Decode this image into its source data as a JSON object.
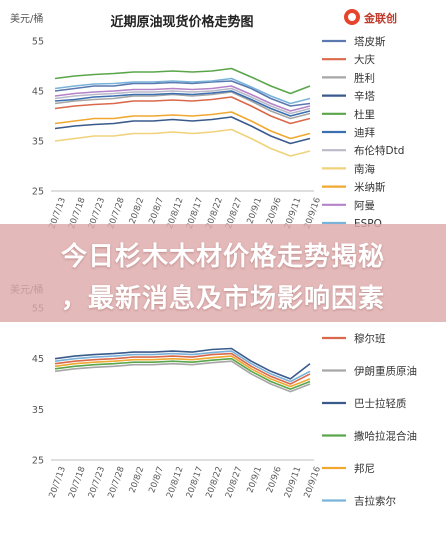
{
  "overlay": {
    "line1": "今日杉木木材价格走势揭秘",
    "line2": "，最新消息及市场影响因素"
  },
  "logo": {
    "text": "金联创",
    "color": "#e8432d"
  },
  "chart_data": [
    {
      "type": "line",
      "title": "近期原油现货价格走势图",
      "ylabel": "美元/桶",
      "ylim": [
        25,
        55
      ],
      "yticks": [
        25,
        35,
        45,
        55
      ],
      "grid": false,
      "legend_position": "right",
      "categories": [
        "20/7/13",
        "20/7/18",
        "20/7/23",
        "20/7/28",
        "20/8/2",
        "20/8/7",
        "20/8/12",
        "20/8/17",
        "20/8/22",
        "20/8/27",
        "20/9/1",
        "20/9/6",
        "20/9/11",
        "20/9/16"
      ],
      "series": [
        {
          "name": "塔皮斯",
          "color": "#5b78b0",
          "values": [
            45.0,
            45.5,
            46.0,
            46.0,
            46.5,
            46.5,
            46.7,
            46.5,
            46.8,
            47.0,
            45.5,
            43.5,
            42.0,
            42.5
          ]
        },
        {
          "name": "大庆",
          "color": "#d9694a",
          "values": [
            41.5,
            42.0,
            42.3,
            42.5,
            43.0,
            43.0,
            43.2,
            43.0,
            43.3,
            43.8,
            42.0,
            40.0,
            38.5,
            39.5
          ]
        },
        {
          "name": "胜利",
          "color": "#a6a6a6",
          "values": [
            42.5,
            43.0,
            43.3,
            43.5,
            44.0,
            44.0,
            44.3,
            44.0,
            44.3,
            44.8,
            43.0,
            41.0,
            39.5,
            40.5
          ]
        },
        {
          "name": "辛塔",
          "color": "#3a5a8c",
          "values": [
            37.5,
            38.0,
            38.3,
            38.5,
            39.0,
            39.0,
            39.3,
            39.0,
            39.3,
            39.8,
            38.0,
            36.0,
            34.5,
            35.5
          ]
        },
        {
          "name": "杜里",
          "color": "#5aa64a",
          "values": [
            47.5,
            48.0,
            48.3,
            48.5,
            48.8,
            48.8,
            49.0,
            48.8,
            49.0,
            49.5,
            47.8,
            46.0,
            44.5,
            46.0
          ]
        },
        {
          "name": "迪拜",
          "color": "#3b6fb0",
          "values": [
            43.0,
            43.3,
            43.8,
            44.0,
            44.3,
            44.3,
            44.5,
            44.3,
            44.6,
            45.0,
            43.3,
            41.5,
            40.0,
            41.0
          ]
        },
        {
          "name": "布伦特Dtd",
          "color": "#b9b9c9",
          "values": [
            43.5,
            44.0,
            44.3,
            44.5,
            44.8,
            44.8,
            45.0,
            44.8,
            45.0,
            45.5,
            43.8,
            42.0,
            40.5,
            41.5
          ]
        },
        {
          "name": "南海",
          "color": "#f0d27a",
          "values": [
            35.0,
            35.5,
            36.0,
            36.0,
            36.5,
            36.5,
            36.8,
            36.5,
            36.8,
            37.3,
            35.5,
            33.5,
            32.0,
            33.0
          ]
        },
        {
          "name": "米纳斯",
          "color": "#f0a830",
          "values": [
            38.5,
            39.0,
            39.5,
            39.5,
            40.0,
            40.0,
            40.2,
            40.0,
            40.3,
            40.8,
            39.0,
            37.0,
            35.5,
            36.5
          ]
        },
        {
          "name": "阿曼",
          "color": "#b583c7",
          "values": [
            44.0,
            44.5,
            44.8,
            45.0,
            45.3,
            45.3,
            45.5,
            45.3,
            45.5,
            46.0,
            44.3,
            42.5,
            41.0,
            42.0
          ]
        },
        {
          "name": "ESPO",
          "color": "#7ab3d9",
          "values": [
            45.5,
            46.0,
            46.4,
            46.5,
            46.8,
            46.8,
            47.0,
            46.8,
            47.0,
            47.5,
            45.8,
            44.0,
            42.5,
            43.5
          ]
        }
      ]
    },
    {
      "type": "line",
      "ylabel": "美元/桶",
      "ylim": [
        25,
        55
      ],
      "yticks": [
        25,
        35,
        45,
        55
      ],
      "grid": false,
      "legend_position": "right",
      "categories": [
        "20/7/13",
        "20/7/18",
        "20/7/23",
        "20/7/28",
        "20/8/2",
        "20/8/7",
        "20/8/12",
        "20/8/17",
        "20/8/22",
        "20/8/27",
        "20/9/1",
        "20/9/6",
        "20/9/11",
        "20/9/16"
      ],
      "series": [
        {
          "name": "穆尔班",
          "color": "#d9694a",
          "values": [
            44.0,
            44.5,
            44.8,
            45.0,
            45.3,
            45.3,
            45.5,
            45.3,
            45.8,
            46.0,
            43.5,
            41.5,
            40.0,
            42.0
          ]
        },
        {
          "name": "伊朗重质原油",
          "color": "#a6a6a6",
          "values": [
            42.5,
            43.0,
            43.3,
            43.5,
            43.8,
            43.8,
            44.0,
            43.8,
            44.2,
            44.5,
            42.0,
            40.0,
            38.5,
            40.0
          ]
        },
        {
          "name": "巴士拉轻质",
          "color": "#3a5a8c",
          "values": [
            45.0,
            45.5,
            45.8,
            46.0,
            46.3,
            46.3,
            46.5,
            46.3,
            46.8,
            47.0,
            44.5,
            42.5,
            41.0,
            44.0
          ]
        },
        {
          "name": "撒哈拉混合油",
          "color": "#5aa64a",
          "values": [
            43.0,
            43.5,
            43.8,
            44.0,
            44.3,
            44.3,
            44.5,
            44.3,
            44.7,
            45.0,
            42.5,
            40.5,
            39.0,
            40.5
          ]
        },
        {
          "name": "邦尼",
          "color": "#f0a830",
          "values": [
            43.5,
            44.0,
            44.3,
            44.5,
            44.8,
            44.8,
            45.0,
            44.8,
            45.2,
            45.5,
            43.0,
            41.0,
            39.5,
            41.0
          ]
        },
        {
          "name": "吉拉索尔",
          "color": "#7ab3d9",
          "values": [
            44.5,
            45.0,
            45.3,
            45.5,
            45.8,
            45.8,
            46.0,
            45.8,
            46.2,
            46.5,
            44.0,
            42.0,
            40.5,
            42.5
          ]
        }
      ]
    }
  ]
}
